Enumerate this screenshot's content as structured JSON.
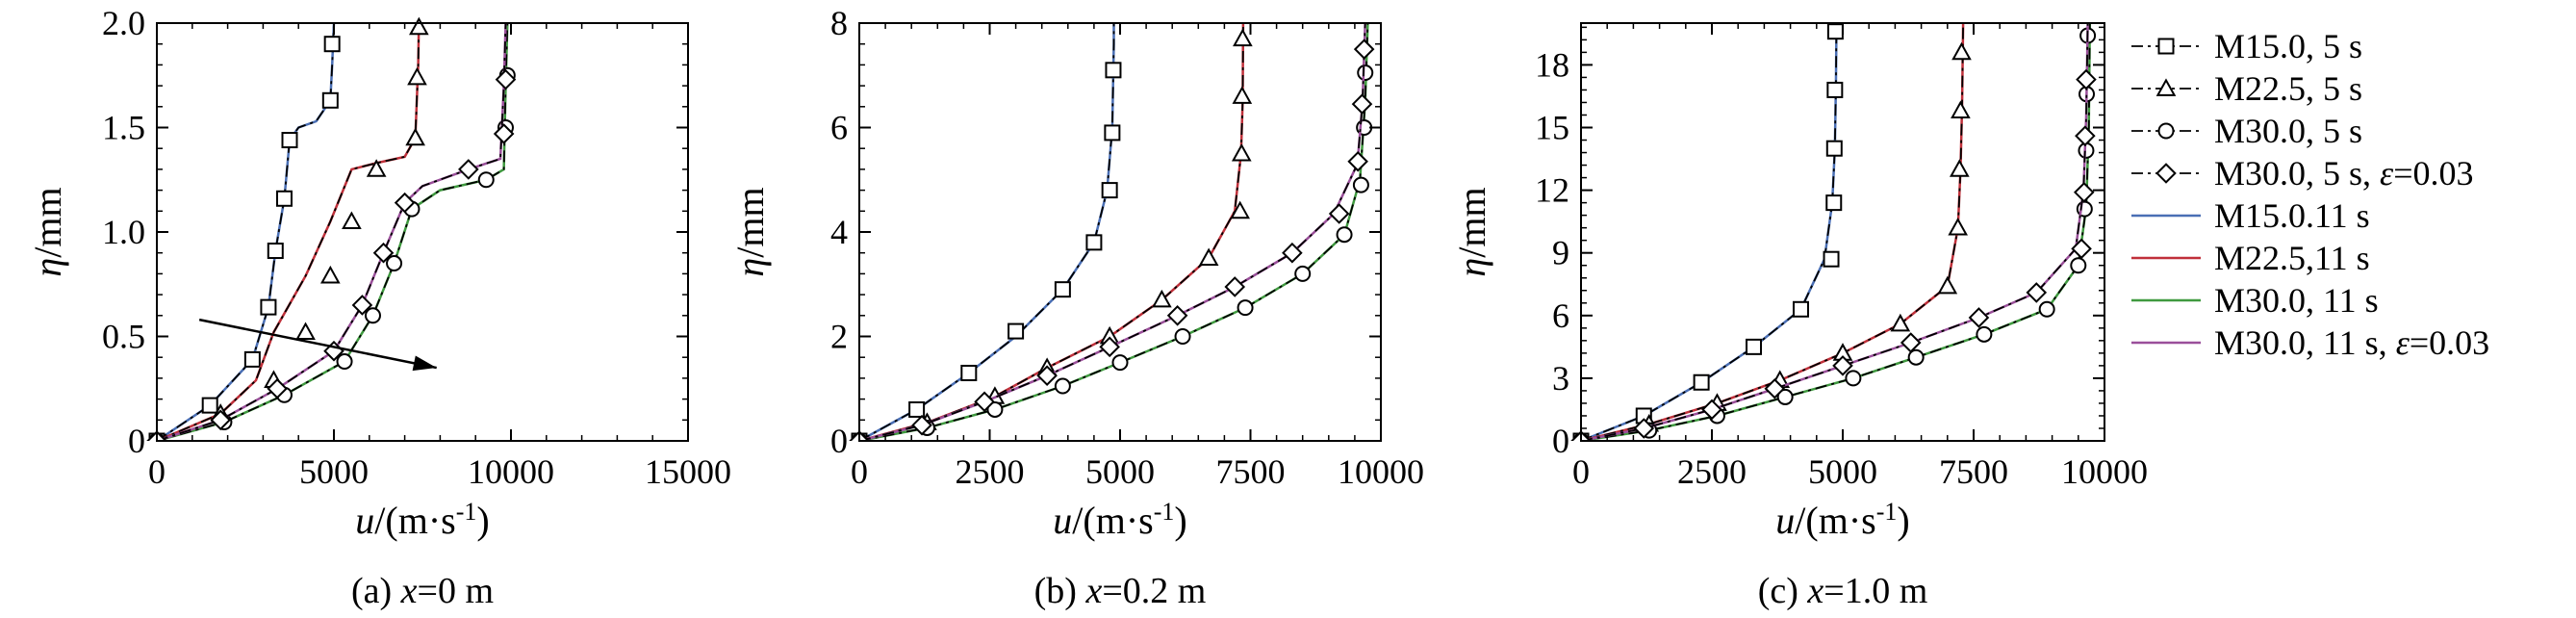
{
  "legend": [
    {
      "label": "M15.0, 5 s",
      "color": "#000000",
      "dash": "dashdot",
      "marker": "square"
    },
    {
      "label": "M22.5, 5 s",
      "color": "#000000",
      "dash": "dashdot",
      "marker": "triangle"
    },
    {
      "label": "M30.0, 5 s",
      "color": "#000000",
      "dash": "dashdot",
      "marker": "circle"
    },
    {
      "label": "M30.0, 5 s, ε=0.03",
      "color": "#000000",
      "dash": "dashdot",
      "marker": "diamond"
    },
    {
      "label": "M15.0.11 s",
      "color": "#4a6fb5",
      "dash": "solid",
      "marker": "none"
    },
    {
      "label": "M22.5,11 s",
      "color": "#c0303a",
      "dash": "solid",
      "marker": "none"
    },
    {
      "label": "M30.0, 11 s",
      "color": "#3f9a3f",
      "dash": "solid",
      "marker": "none"
    },
    {
      "label": "M30.0, 11 s, ε=0.03",
      "color": "#9a4f9a",
      "dash": "solid",
      "marker": "none"
    }
  ],
  "chart_data": [
    {
      "type": "line",
      "caption": "(a) x=0 m",
      "xlabel": "u/(m·s⁻¹)",
      "ylabel": "η/mm",
      "xlim": [
        0,
        15000
      ],
      "ylim": [
        0,
        2.0
      ],
      "xticks": [
        "0",
        "5000",
        "10000",
        "15000"
      ],
      "yticks": [
        "0",
        "0.5",
        "1.0",
        "1.5",
        "2.0"
      ],
      "xtick_values": [
        0,
        5000,
        10000,
        15000
      ],
      "ytick_values": [
        0,
        0.5,
        1.0,
        1.5,
        2.0
      ],
      "arrow": {
        "from": [
          1200,
          0.58
        ],
        "to": [
          7900,
          0.35
        ]
      },
      "series": [
        {
          "color": "#4a6fb5",
          "marker": "square",
          "x": [
            0,
            1500,
            2700,
            3150,
            3350,
            3600,
            3750,
            4000,
            4500,
            4900,
            4950,
            5000
          ],
          "y": [
            0,
            0.17,
            0.39,
            0.64,
            0.91,
            1.16,
            1.44,
            1.5,
            1.53,
            1.63,
            1.8,
            2.0
          ],
          "marks": [
            [
              0,
              0
            ],
            [
              1500,
              0.17
            ],
            [
              2700,
              0.39
            ],
            [
              3150,
              0.64
            ],
            [
              3350,
              0.91
            ],
            [
              3600,
              1.16
            ],
            [
              3750,
              1.44
            ],
            [
              4900,
              1.63
            ],
            [
              4950,
              1.9
            ]
          ]
        },
        {
          "color": "#c0303a",
          "marker": "triangle",
          "x": [
            0,
            1800,
            2800,
            3300,
            4200,
            4900,
            5500,
            6200,
            7000,
            7300,
            7380,
            7400
          ],
          "y": [
            0,
            0.13,
            0.29,
            0.52,
            0.79,
            1.05,
            1.3,
            1.33,
            1.36,
            1.45,
            1.8,
            2.0
          ],
          "marks": [
            [
              0,
              0
            ],
            [
              1800,
              0.13
            ],
            [
              3300,
              0.29
            ],
            [
              4200,
              0.52
            ],
            [
              4900,
              0.79
            ],
            [
              5500,
              1.05
            ],
            [
              6200,
              1.3
            ],
            [
              7300,
              1.45
            ],
            [
              7350,
              1.74
            ],
            [
              7400,
              1.98
            ]
          ]
        },
        {
          "color": "#3f9a3f",
          "marker": "circle",
          "x": [
            0,
            1900,
            3600,
            5300,
            6100,
            6700,
            7200,
            8000,
            9300,
            9800,
            9850,
            9900
          ],
          "y": [
            0,
            0.09,
            0.22,
            0.38,
            0.6,
            0.85,
            1.11,
            1.2,
            1.25,
            1.3,
            1.7,
            2.0
          ],
          "marks": [
            [
              0,
              0
            ],
            [
              1900,
              0.09
            ],
            [
              3600,
              0.22
            ],
            [
              5300,
              0.38
            ],
            [
              6100,
              0.6
            ],
            [
              6700,
              0.85
            ],
            [
              7200,
              1.11
            ],
            [
              9300,
              1.25
            ],
            [
              9850,
              1.5
            ],
            [
              9900,
              1.75
            ]
          ]
        },
        {
          "color": "#9a4f9a",
          "marker": "diamond",
          "x": [
            0,
            1800,
            3400,
            5000,
            5800,
            6400,
            7000,
            7500,
            8800,
            9700,
            9800,
            9850
          ],
          "y": [
            0,
            0.1,
            0.25,
            0.43,
            0.65,
            0.9,
            1.14,
            1.22,
            1.3,
            1.35,
            1.7,
            2.0
          ],
          "marks": [
            [
              0,
              0
            ],
            [
              1800,
              0.1
            ],
            [
              3400,
              0.25
            ],
            [
              5000,
              0.43
            ],
            [
              5800,
              0.65
            ],
            [
              6400,
              0.9
            ],
            [
              7000,
              1.14
            ],
            [
              8800,
              1.3
            ],
            [
              9800,
              1.47
            ],
            [
              9850,
              1.73
            ]
          ]
        }
      ]
    },
    {
      "type": "line",
      "caption": "(b) x=0.2 m",
      "xlabel": "u/(m·s⁻¹)",
      "ylabel": "η/mm",
      "xlim": [
        0,
        10000
      ],
      "ylim": [
        0,
        8
      ],
      "xticks": [
        "0",
        "2500",
        "5000",
        "7500",
        "10000"
      ],
      "yticks": [
        "0",
        "2",
        "4",
        "6",
        "8"
      ],
      "xtick_values": [
        0,
        2500,
        5000,
        7500,
        10000
      ],
      "ytick_values": [
        0,
        2,
        4,
        6,
        8
      ],
      "series": [
        {
          "color": "#4a6fb5",
          "marker": "square",
          "x": [
            0,
            1100,
            2100,
            3000,
            3900,
            4500,
            4750,
            4850,
            4870,
            4880,
            4880
          ],
          "y": [
            0,
            0.6,
            1.3,
            2.0,
            2.9,
            3.8,
            4.8,
            6.0,
            7.1,
            7.6,
            8.0
          ],
          "marks": [
            [
              0,
              0
            ],
            [
              1100,
              0.6
            ],
            [
              2100,
              1.3
            ],
            [
              3000,
              2.1
            ],
            [
              3900,
              2.9
            ],
            [
              4500,
              3.8
            ],
            [
              4800,
              4.8
            ],
            [
              4850,
              5.9
            ],
            [
              4870,
              7.1
            ]
          ]
        },
        {
          "color": "#c0303a",
          "marker": "triangle",
          "x": [
            0,
            1300,
            2600,
            3600,
            4800,
            5800,
            6700,
            7200,
            7320,
            7350,
            7360
          ],
          "y": [
            0,
            0.35,
            0.85,
            1.4,
            2.0,
            2.7,
            3.5,
            4.4,
            5.5,
            6.5,
            8.0
          ],
          "marks": [
            [
              0,
              0
            ],
            [
              1300,
              0.35
            ],
            [
              2600,
              0.85
            ],
            [
              3600,
              1.4
            ],
            [
              4800,
              2.0
            ],
            [
              5800,
              2.7
            ],
            [
              6700,
              3.5
            ],
            [
              7300,
              4.4
            ],
            [
              7330,
              5.5
            ],
            [
              7340,
              6.6
            ],
            [
              7350,
              7.7
            ]
          ]
        },
        {
          "color": "#3f9a3f",
          "marker": "circle",
          "x": [
            0,
            1300,
            2600,
            3900,
            5000,
            6200,
            7400,
            8500,
            9300,
            9600,
            9700,
            9750
          ],
          "y": [
            0,
            0.25,
            0.6,
            1.05,
            1.5,
            2.0,
            2.55,
            3.2,
            3.95,
            5.0,
            6.5,
            8.0
          ],
          "marks": [
            [
              0,
              0
            ],
            [
              1300,
              0.25
            ],
            [
              2600,
              0.6
            ],
            [
              3900,
              1.05
            ],
            [
              5000,
              1.5
            ],
            [
              6200,
              2.0
            ],
            [
              7400,
              2.55
            ],
            [
              8500,
              3.2
            ],
            [
              9300,
              3.95
            ],
            [
              9620,
              4.9
            ],
            [
              9680,
              6.0
            ],
            [
              9700,
              7.05
            ]
          ]
        },
        {
          "color": "#9a4f9a",
          "marker": "diamond",
          "x": [
            0,
            1200,
            2400,
            3600,
            4800,
            6100,
            7200,
            8300,
            9100,
            9550,
            9650,
            9700
          ],
          "y": [
            0,
            0.3,
            0.75,
            1.25,
            1.8,
            2.4,
            2.95,
            3.6,
            4.35,
            5.3,
            6.5,
            8.0
          ],
          "marks": [
            [
              0,
              0
            ],
            [
              1200,
              0.3
            ],
            [
              2400,
              0.75
            ],
            [
              3600,
              1.25
            ],
            [
              4800,
              1.8
            ],
            [
              6100,
              2.4
            ],
            [
              7200,
              2.95
            ],
            [
              8300,
              3.6
            ],
            [
              9200,
              4.35
            ],
            [
              9560,
              5.35
            ],
            [
              9640,
              6.45
            ],
            [
              9680,
              7.5
            ]
          ]
        }
      ]
    },
    {
      "type": "line",
      "caption": "(c) x=1.0 m",
      "xlabel": "u/(m·s⁻¹)",
      "ylabel": "η/mm",
      "xlim": [
        0,
        10000
      ],
      "ylim": [
        0,
        20
      ],
      "xticks": [
        "0",
        "2500",
        "5000",
        "7500",
        "10000"
      ],
      "yticks": [
        "0",
        "3",
        "6",
        "9",
        "12",
        "15",
        "18"
      ],
      "xtick_values": [
        0,
        2500,
        5000,
        7500,
        10000
      ],
      "ytick_values": [
        0,
        3,
        6,
        9,
        12,
        15,
        18
      ],
      "series": [
        {
          "color": "#4a6fb5",
          "marker": "square",
          "x": [
            0,
            1200,
            2300,
            3300,
            4200,
            4650,
            4800,
            4850,
            4870,
            4880
          ],
          "y": [
            0,
            1.2,
            2.8,
            4.5,
            6.3,
            8.7,
            11.4,
            14.0,
            17.0,
            20.0
          ],
          "marks": [
            [
              0,
              0
            ],
            [
              1200,
              1.2
            ],
            [
              2300,
              2.8
            ],
            [
              3300,
              4.5
            ],
            [
              4200,
              6.3
            ],
            [
              4780,
              8.7
            ],
            [
              4830,
              11.4
            ],
            [
              4840,
              14.0
            ],
            [
              4850,
              16.8
            ],
            [
              4860,
              19.6
            ]
          ]
        },
        {
          "color": "#c0303a",
          "marker": "triangle",
          "x": [
            0,
            1300,
            2600,
            3800,
            5000,
            6100,
            7000,
            7200,
            7250,
            7280,
            7300
          ],
          "y": [
            0,
            0.8,
            1.8,
            2.9,
            4.2,
            5.6,
            7.4,
            10.2,
            13.0,
            16.0,
            20.0
          ],
          "marks": [
            [
              0,
              0
            ],
            [
              1300,
              0.8
            ],
            [
              2600,
              1.8
            ],
            [
              3800,
              2.9
            ],
            [
              5000,
              4.2
            ],
            [
              6100,
              5.6
            ],
            [
              7000,
              7.4
            ],
            [
              7200,
              10.2
            ],
            [
              7230,
              13.0
            ],
            [
              7250,
              15.8
            ],
            [
              7270,
              18.6
            ]
          ]
        },
        {
          "color": "#3f9a3f",
          "marker": "circle",
          "x": [
            0,
            1300,
            2600,
            3900,
            5200,
            6400,
            7700,
            8900,
            9500,
            9650,
            9700,
            9720
          ],
          "y": [
            0,
            0.5,
            1.2,
            2.1,
            3.0,
            4.0,
            5.1,
            6.3,
            8.4,
            11.2,
            15.0,
            20.0
          ],
          "marks": [
            [
              0,
              0
            ],
            [
              1300,
              0.5
            ],
            [
              2600,
              1.2
            ],
            [
              3900,
              2.1
            ],
            [
              5200,
              3.0
            ],
            [
              6400,
              4.0
            ],
            [
              7700,
              5.1
            ],
            [
              8900,
              6.3
            ],
            [
              9500,
              8.4
            ],
            [
              9620,
              11.1
            ],
            [
              9650,
              13.9
            ],
            [
              9660,
              16.6
            ],
            [
              9680,
              19.4
            ]
          ]
        },
        {
          "color": "#9a4f9a",
          "marker": "diamond",
          "x": [
            0,
            1200,
            2500,
            3700,
            5000,
            6300,
            7600,
            8700,
            9450,
            9600,
            9650,
            9680
          ],
          "y": [
            0,
            0.6,
            1.5,
            2.5,
            3.6,
            4.7,
            5.9,
            7.1,
            9.2,
            12.0,
            15.5,
            20.0
          ],
          "marks": [
            [
              0,
              0
            ],
            [
              1200,
              0.6
            ],
            [
              2500,
              1.5
            ],
            [
              3700,
              2.5
            ],
            [
              5000,
              3.6
            ],
            [
              6300,
              4.7
            ],
            [
              7600,
              5.9
            ],
            [
              8700,
              7.1
            ],
            [
              9560,
              9.2
            ],
            [
              9610,
              11.9
            ],
            [
              9630,
              14.6
            ],
            [
              9650,
              17.3
            ]
          ]
        }
      ]
    }
  ]
}
